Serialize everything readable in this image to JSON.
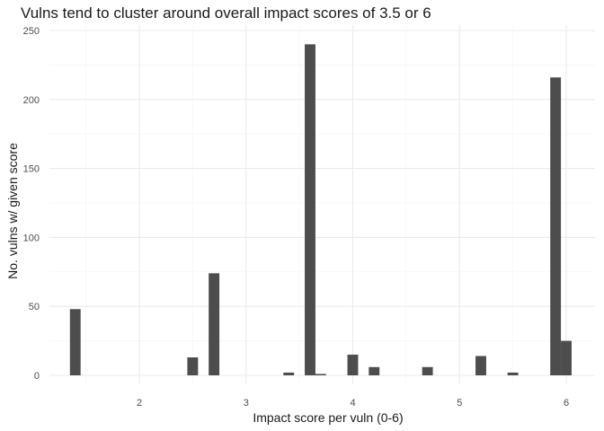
{
  "chart_data": {
    "type": "bar",
    "title": "Vulns tend to cluster around overall impact scores of 3.5 or 6",
    "xlabel": "Impact score per vuln (0-6)",
    "ylabel": "No. vulns w/ given score",
    "xlim": [
      1.2,
      6.1
    ],
    "ylim": [
      0,
      250
    ],
    "x_ticks": [
      2,
      3,
      4,
      5,
      6
    ],
    "y_ticks": [
      0,
      50,
      100,
      150,
      200,
      250
    ],
    "bin_width": 0.1,
    "grid": true,
    "bars": [
      {
        "x": 1.4,
        "count": 48
      },
      {
        "x": 2.5,
        "count": 13
      },
      {
        "x": 2.7,
        "count": 74
      },
      {
        "x": 3.4,
        "count": 2
      },
      {
        "x": 3.6,
        "count": 240
      },
      {
        "x": 3.7,
        "count": 1
      },
      {
        "x": 4.0,
        "count": 15
      },
      {
        "x": 4.2,
        "count": 6
      },
      {
        "x": 4.7,
        "count": 6
      },
      {
        "x": 5.2,
        "count": 14
      },
      {
        "x": 5.5,
        "count": 2
      },
      {
        "x": 5.9,
        "count": 216
      },
      {
        "x": 6.0,
        "count": 25
      }
    ]
  }
}
